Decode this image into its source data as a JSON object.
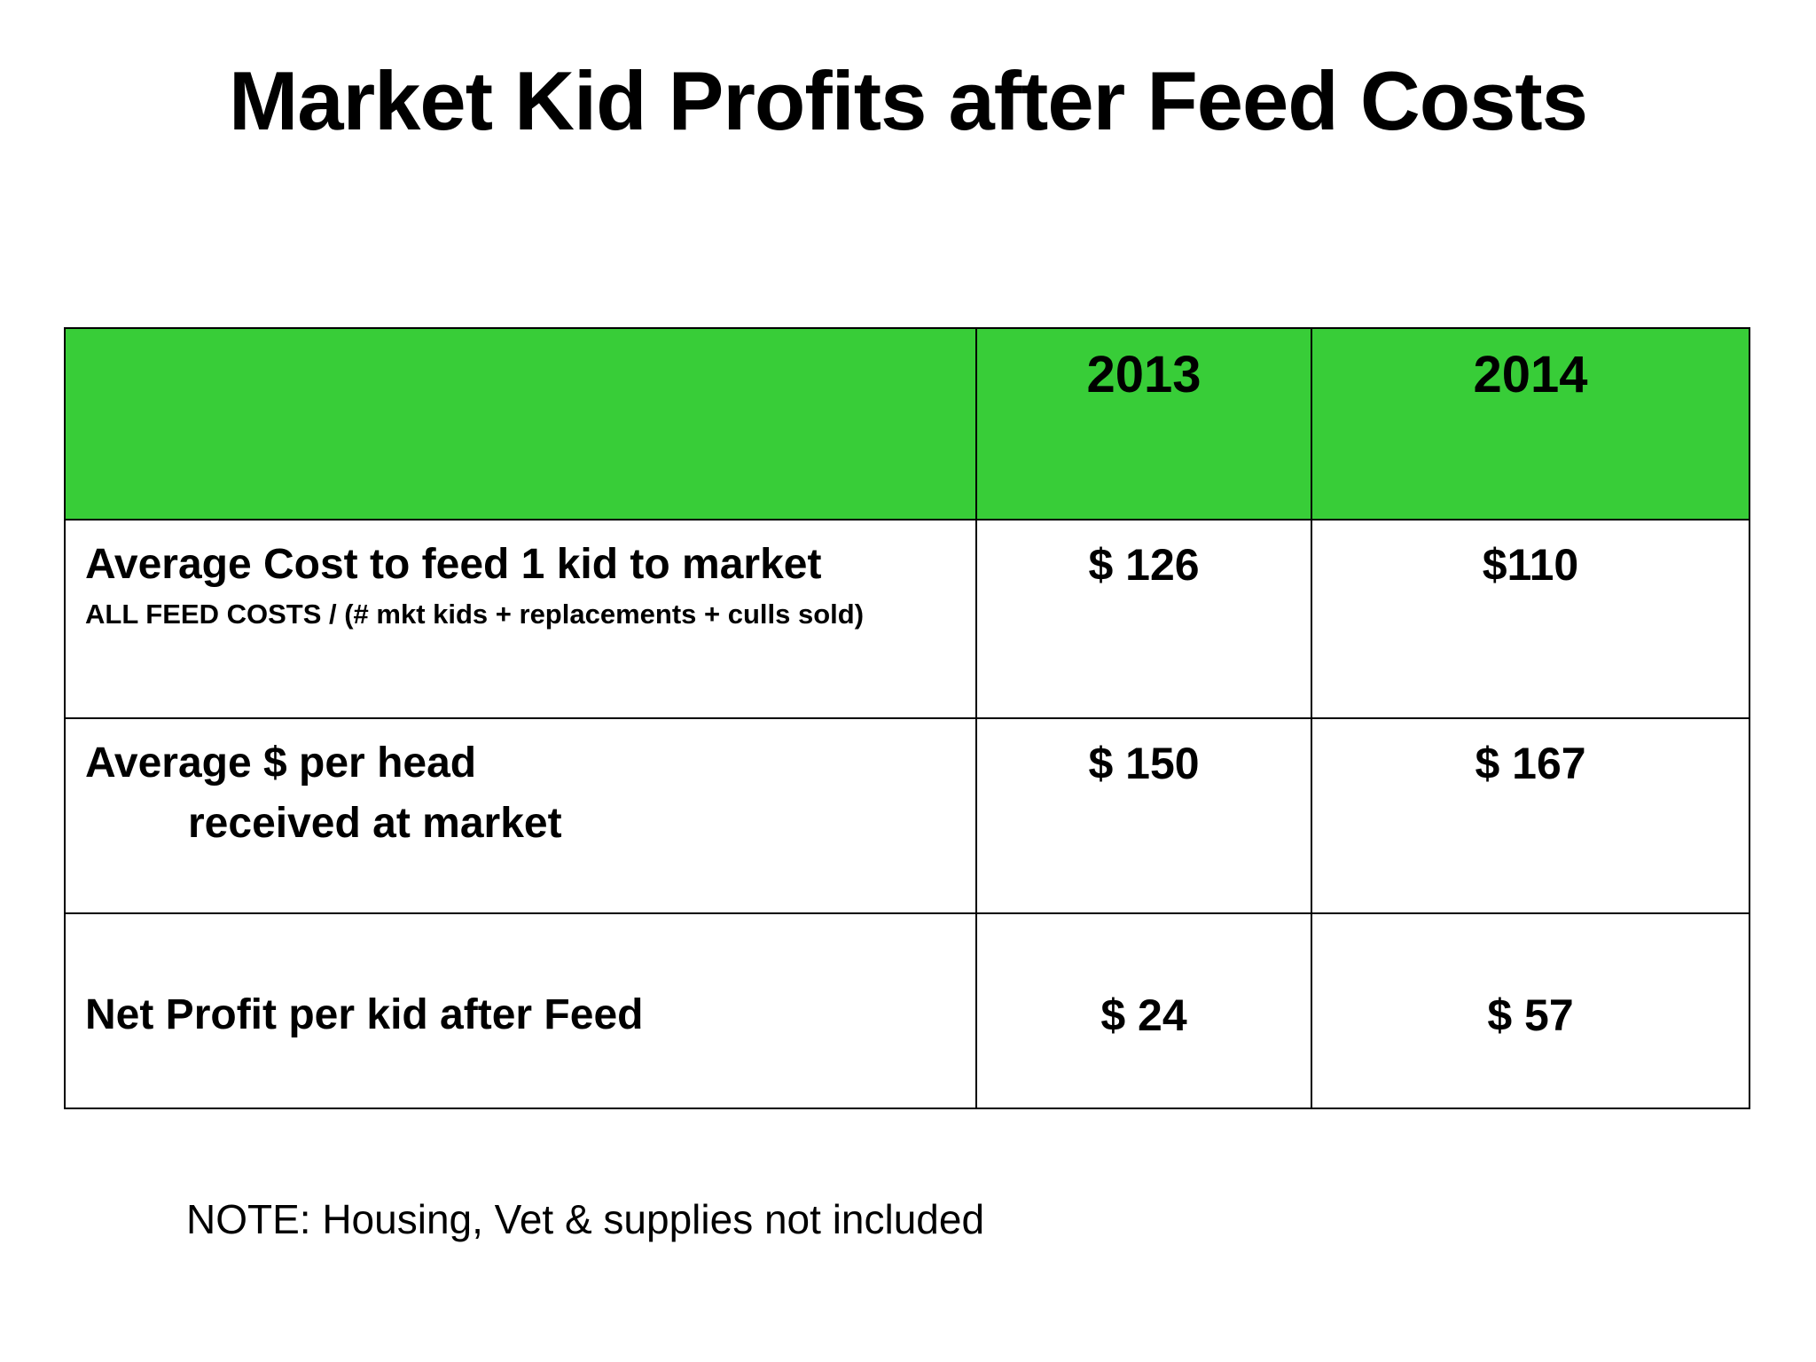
{
  "slide": {
    "title": "Market Kid Profits after Feed Costs",
    "note": "NOTE:  Housing, Vet & supplies not included"
  },
  "table": {
    "header_color": "#38CD38",
    "columns": [
      "",
      "2013",
      "2014"
    ],
    "rows": [
      {
        "label": "Average Cost to feed 1 kid to market",
        "sublabel": "ALL FEED COSTS / (# mkt kids + replacements + culls sold)",
        "v2013": "$ 126",
        "v2014": "$110"
      },
      {
        "label": "Average $ per head",
        "label_line2": "received at market",
        "v2013": "$ 150",
        "v2014": "$ 167"
      },
      {
        "label": "Net Profit  per kid after Feed",
        "v2013": "$ 24",
        "v2014": "$ 57"
      }
    ]
  }
}
